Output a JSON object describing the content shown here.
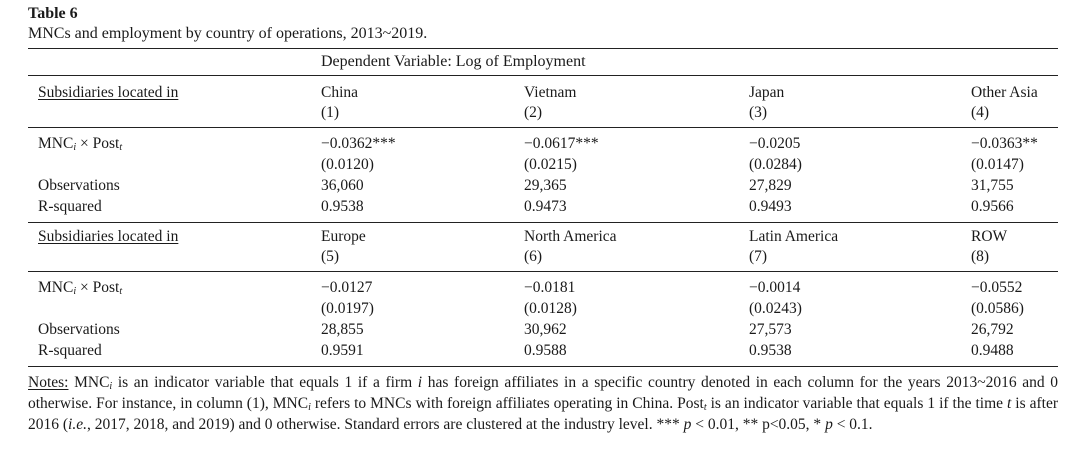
{
  "table_label": "Table 6",
  "caption": "MNCs and employment by country of operations, 2013~2019.",
  "dependent_variable": "Dependent Variable: Log of Employment",
  "panels": [
    {
      "header_label": "Subsidiaries located in",
      "columns": [
        {
          "name": "China",
          "num": "(1)"
        },
        {
          "name": "Vietnam",
          "num": "(2)"
        },
        {
          "name": "Japan",
          "num": "(3)"
        },
        {
          "name": "Other Asia",
          "num": "(4)"
        }
      ],
      "coef_row": {
        "label_main": "MNC",
        "label_sub_i": "i",
        "label_mid": " × Post",
        "label_sub_t": "t",
        "values": [
          "−0.0362***",
          "−0.0617***",
          "−0.0205",
          "−0.0363**"
        ]
      },
      "se_row": [
        "(0.0120)",
        "(0.0215)",
        "(0.0284)",
        "(0.0147)"
      ],
      "obs_row": {
        "label": "Observations",
        "values": [
          "36,060",
          "29,365",
          "27,829",
          "31,755"
        ]
      },
      "r2_row": {
        "label": "R-squared",
        "values": [
          "0.9538",
          "0.9473",
          "0.9493",
          "0.9566"
        ]
      }
    },
    {
      "header_label": "Subsidiaries located in",
      "columns": [
        {
          "name": "Europe",
          "num": "(5)"
        },
        {
          "name": "North America",
          "num": "(6)"
        },
        {
          "name": "Latin America",
          "num": "(7)"
        },
        {
          "name": "ROW",
          "num": "(8)"
        }
      ],
      "coef_row": {
        "label_main": "MNC",
        "label_sub_i": "i",
        "label_mid": " × Post",
        "label_sub_t": "t",
        "values": [
          "−0.0127",
          "−0.0181",
          "−0.0014",
          "−0.0552"
        ]
      },
      "se_row": [
        "(0.0197)",
        "(0.0128)",
        "(0.0243)",
        "(0.0586)"
      ],
      "obs_row": {
        "label": "Observations",
        "values": [
          "28,855",
          "30,962",
          "27,573",
          "26,792"
        ]
      },
      "r2_row": {
        "label": "R-squared",
        "values": [
          "0.9591",
          "0.9588",
          "0.9538",
          "0.9488"
        ]
      }
    }
  ],
  "notes": {
    "label": "Notes:",
    "p1": " MNC",
    "sub_i1": "i",
    "p2": " is an indicator variable that equals 1 if a firm ",
    "it_i": "i",
    "p3": " has foreign affiliates in a specific country denoted in each column for the years 2013~2016 and 0 otherwise. For instance, in column (1), MNC",
    "sub_i2": "i",
    "p4": " refers to MNCs with foreign affiliates operating in China. Post",
    "sub_t1": "t",
    "p5": " is an indicator variable that equals 1 if the time ",
    "it_t": "t",
    "p6": " is after 2016 (",
    "it_ie": "i.e.",
    "p7": ", 2017, 2018, and 2019) and 0 otherwise. Standard errors are clustered at the industry level. *** ",
    "it_p1": "p",
    "p8": " < 0.01, ** p<0.05, * ",
    "it_p2": "p",
    "p9": " < 0.1."
  }
}
